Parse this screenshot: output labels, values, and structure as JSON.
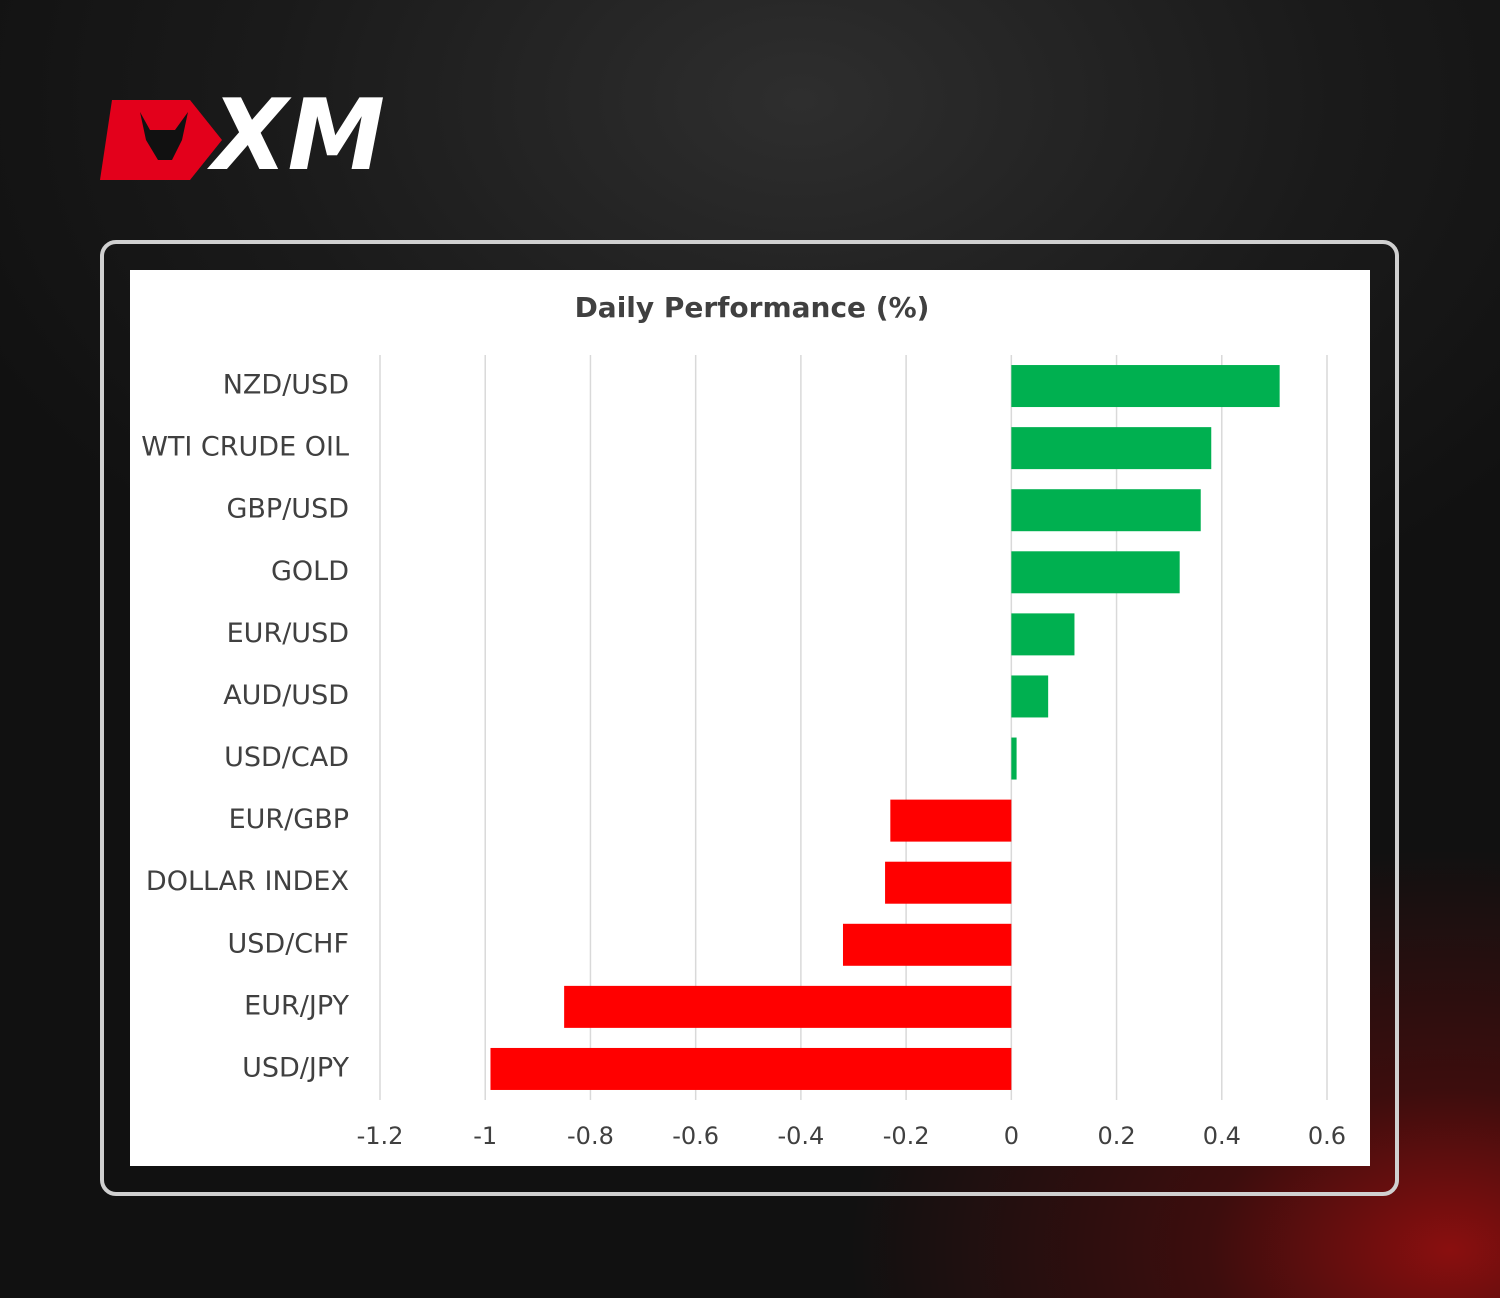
{
  "brand": "XM",
  "chart_data": {
    "type": "bar",
    "orientation": "horizontal",
    "title": "Daily Performance (%)",
    "categories": [
      "NZD/USD",
      "WTI CRUDE OIL",
      "GBP/USD",
      "GOLD",
      "EUR/USD",
      "AUD/USD",
      "USD/CAD",
      "EUR/GBP",
      "DOLLAR INDEX",
      "USD/CHF",
      "EUR/JPY",
      "USD/JPY"
    ],
    "values": [
      0.51,
      0.38,
      0.36,
      0.32,
      0.12,
      0.07,
      0.01,
      -0.23,
      -0.24,
      -0.32,
      -0.85,
      -0.99
    ],
    "positive_color": "#00b050",
    "negative_color": "#ff0000",
    "xlim": [
      -1.2,
      0.6
    ],
    "xticks": [
      -1.2,
      -1,
      -0.8,
      -0.6,
      -0.4,
      -0.2,
      0,
      0.2,
      0.4,
      0.6
    ],
    "grid": true
  }
}
